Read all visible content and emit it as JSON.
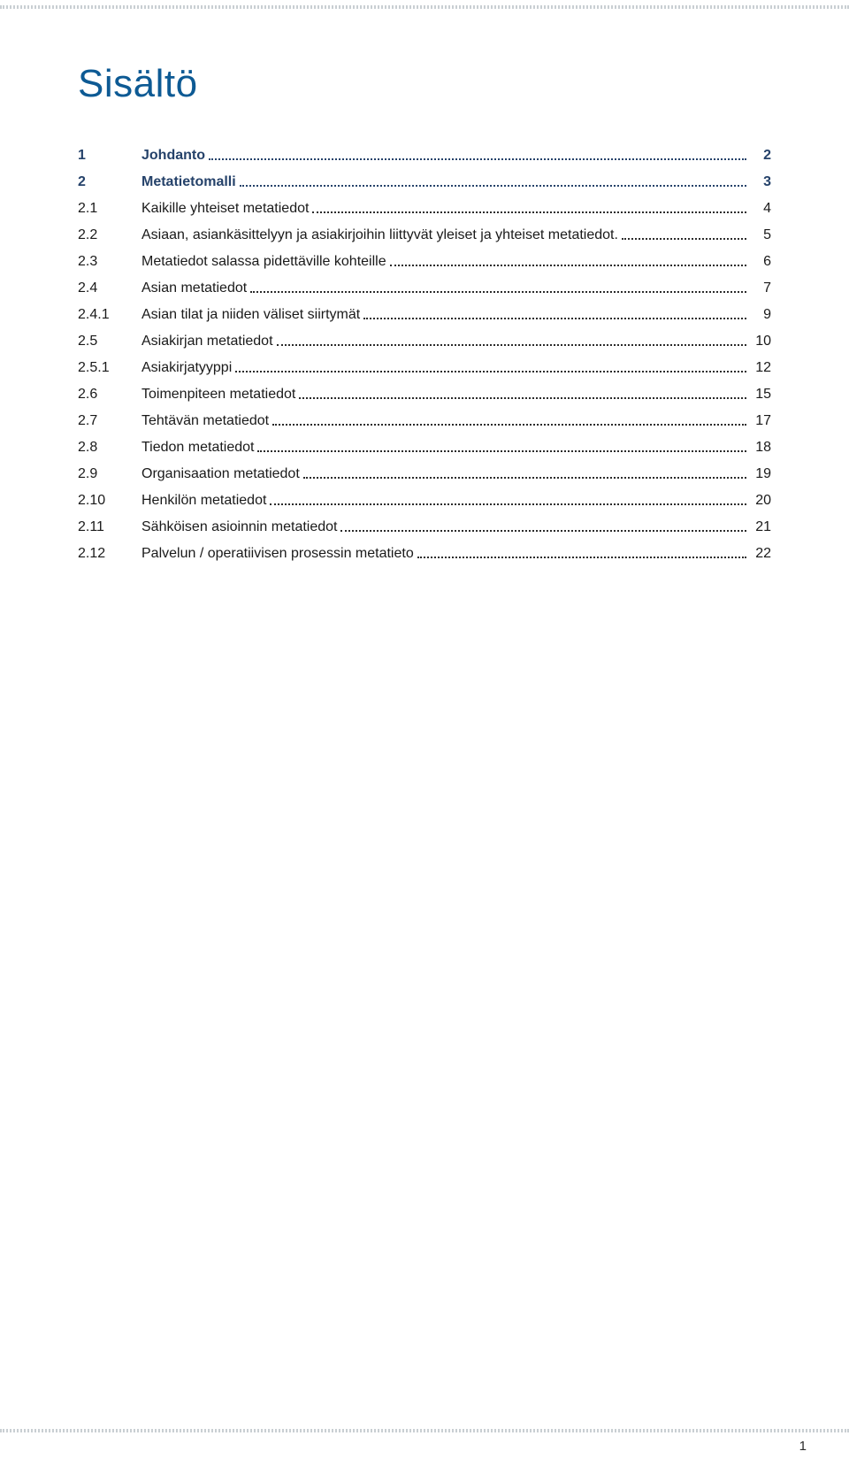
{
  "page": {
    "title": "Sisältö",
    "page_number": "1",
    "title_color": "#0d5a94",
    "bold_color": "#25426a",
    "text_color": "#1a1a1a",
    "dot_color": "#2b2b2b",
    "band_color": "#c9cfd3",
    "bg_color": "#ffffff"
  },
  "toc": {
    "entries": [
      {
        "num": "1",
        "label": "Johdanto",
        "page": "2",
        "bold": true,
        "indent": 0
      },
      {
        "num": "2",
        "label": "Metatietomalli",
        "page": "3",
        "bold": true,
        "indent": 0
      },
      {
        "num": "2.1",
        "label": "Kaikille yhteiset metatiedot",
        "page": "4",
        "bold": false,
        "indent": 1
      },
      {
        "num": "2.2",
        "label": "Asiaan, asiankäsittelyyn ja asiakirjoihin liittyvät yleiset ja yhteiset metatiedot.",
        "page": "5",
        "bold": false,
        "indent": 1
      },
      {
        "num": "2.3",
        "label": "Metatiedot salassa pidettäville kohteille",
        "page": "6",
        "bold": false,
        "indent": 1
      },
      {
        "num": "2.4",
        "label": "Asian metatiedot",
        "page": "7",
        "bold": false,
        "indent": 1
      },
      {
        "num": "2.4.1",
        "label": "Asian tilat ja niiden väliset siirtymät",
        "page": "9",
        "bold": false,
        "indent": 2
      },
      {
        "num": "2.5",
        "label": "Asiakirjan metatiedot",
        "page": "10",
        "bold": false,
        "indent": 1
      },
      {
        "num": "2.5.1",
        "label": "Asiakirjatyyppi",
        "page": "12",
        "bold": false,
        "indent": 2
      },
      {
        "num": "2.6",
        "label": "Toimenpiteen metatiedot",
        "page": "15",
        "bold": false,
        "indent": 1
      },
      {
        "num": "2.7",
        "label": "Tehtävän metatiedot",
        "page": "17",
        "bold": false,
        "indent": 1
      },
      {
        "num": "2.8",
        "label": "Tiedon metatiedot",
        "page": "18",
        "bold": false,
        "indent": 1
      },
      {
        "num": "2.9",
        "label": "Organisaation metatiedot",
        "page": "19",
        "bold": false,
        "indent": 1
      },
      {
        "num": "2.10",
        "label": "Henkilön metatiedot",
        "page": "20",
        "bold": false,
        "indent": 1
      },
      {
        "num": "2.11",
        "label": "Sähköisen asioinnin metatiedot",
        "page": "21",
        "bold": false,
        "indent": 1
      },
      {
        "num": "2.12",
        "label": "Palvelun / operatiivisen prosessin metatieto",
        "page": "22",
        "bold": false,
        "indent": 1
      }
    ]
  }
}
